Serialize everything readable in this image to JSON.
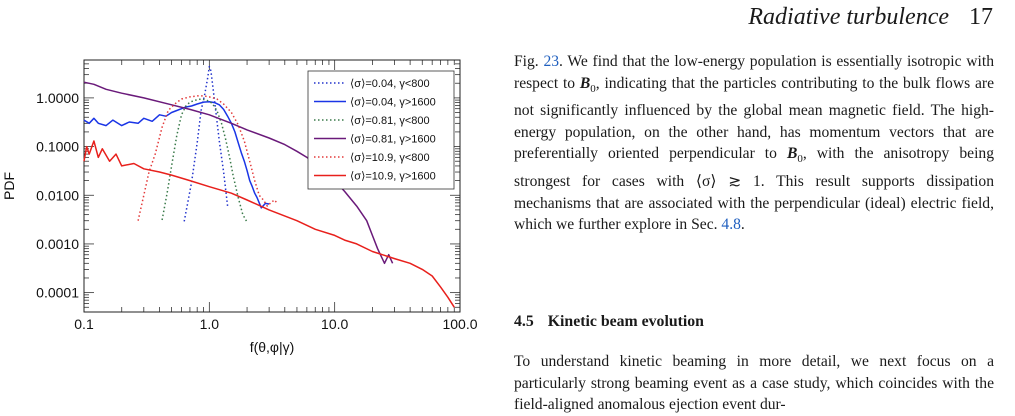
{
  "header": {
    "running_title": "Radiative turbulence",
    "page_number": "17"
  },
  "figure": {
    "chart_data": {
      "type": "line",
      "xlabel": "f(θ,φ|γ)",
      "ylabel": "PDF",
      "xscale": "log",
      "yscale": "log",
      "xlim": [
        0.1,
        100
      ],
      "ylim": [
        4e-05,
        6
      ],
      "x_ticks": [
        0.1,
        1,
        10,
        100
      ],
      "x_tick_labels": [
        "0.1",
        "1.0",
        "10.0",
        "100.0"
      ],
      "y_ticks": [
        0.0001,
        0.001,
        0.01,
        0.1,
        1
      ],
      "y_tick_labels": [
        "0.0001",
        "0.0010",
        "0.0100",
        "0.1000",
        "1.0000"
      ],
      "legend_position": "top-right",
      "series": [
        {
          "name": "⟨σ⟩=0.04, γ<800",
          "color": "#2233cc",
          "dash": "dot",
          "points": [
            [
              0.63,
              0.0029
            ],
            [
              0.72,
              0.018
            ],
            [
              0.8,
              0.12
            ],
            [
              0.86,
              0.55
            ],
            [
              0.92,
              1.2
            ],
            [
              0.97,
              2.6
            ],
            [
              1.0,
              4.4
            ],
            [
              1.03,
              3.6
            ],
            [
              1.07,
              1.6
            ],
            [
              1.12,
              0.6
            ],
            [
              1.2,
              0.13
            ],
            [
              1.3,
              0.03
            ],
            [
              1.4,
              0.006
            ]
          ]
        },
        {
          "name": "⟨σ⟩=0.04, γ>1600",
          "color": "#1a35e6",
          "dash": "solid",
          "points": [
            [
              0.1,
              0.35
            ],
            [
              0.11,
              0.3
            ],
            [
              0.12,
              0.38
            ],
            [
              0.13,
              0.3
            ],
            [
              0.15,
              0.27
            ],
            [
              0.17,
              0.35
            ],
            [
              0.2,
              0.27
            ],
            [
              0.23,
              0.32
            ],
            [
              0.27,
              0.3
            ],
            [
              0.3,
              0.38
            ],
            [
              0.35,
              0.33
            ],
            [
              0.4,
              0.45
            ],
            [
              0.45,
              0.42
            ],
            [
              0.5,
              0.5
            ],
            [
              0.55,
              0.55
            ],
            [
              0.6,
              0.6
            ],
            [
              0.65,
              0.65
            ],
            [
              0.72,
              0.68
            ],
            [
              0.8,
              0.75
            ],
            [
              0.9,
              0.82
            ],
            [
              1.0,
              0.83
            ],
            [
              1.1,
              0.8
            ],
            [
              1.2,
              0.72
            ],
            [
              1.3,
              0.58
            ],
            [
              1.4,
              0.42
            ],
            [
              1.5,
              0.3
            ],
            [
              1.6,
              0.2
            ],
            [
              1.7,
              0.12
            ],
            [
              1.8,
              0.075
            ],
            [
              1.9,
              0.05
            ],
            [
              2.0,
              0.032
            ],
            [
              2.1,
              0.02
            ],
            [
              2.2,
              0.015
            ],
            [
              2.3,
              0.011
            ],
            [
              2.4,
              0.009
            ],
            [
              2.5,
              0.007
            ],
            [
              2.6,
              0.0055
            ],
            [
              2.8,
              0.0068
            ],
            [
              3.0,
              0.0066
            ]
          ]
        },
        {
          "name": "⟨σ⟩=0.81, γ<800",
          "color": "#3a7a4a",
          "dash": "dot",
          "points": [
            [
              0.42,
              0.0031
            ],
            [
              0.46,
              0.011
            ],
            [
              0.5,
              0.04
            ],
            [
              0.55,
              0.17
            ],
            [
              0.6,
              0.45
            ],
            [
              0.65,
              0.68
            ],
            [
              0.7,
              0.82
            ],
            [
              0.78,
              0.9
            ],
            [
              0.86,
              0.95
            ],
            [
              0.95,
              0.9
            ],
            [
              1.05,
              0.78
            ],
            [
              1.15,
              0.55
            ],
            [
              1.25,
              0.3
            ],
            [
              1.35,
              0.14
            ],
            [
              1.45,
              0.06
            ],
            [
              1.55,
              0.025
            ],
            [
              1.7,
              0.009
            ],
            [
              1.85,
              0.004
            ],
            [
              2.0,
              0.0028
            ]
          ]
        },
        {
          "name": "⟨σ⟩=0.81, γ>1600",
          "color": "#6a1a7a",
          "dash": "solid",
          "points": [
            [
              0.1,
              2.1
            ],
            [
              0.12,
              1.9
            ],
            [
              0.15,
              1.5
            ],
            [
              0.2,
              1.25
            ],
            [
              0.3,
              1.0
            ],
            [
              0.5,
              0.72
            ],
            [
              0.7,
              0.58
            ],
            [
              1.0,
              0.45
            ],
            [
              1.5,
              0.3
            ],
            [
              2.0,
              0.22
            ],
            [
              3.0,
              0.15
            ],
            [
              4.0,
              0.11
            ],
            [
              5.0,
              0.08
            ],
            [
              6.0,
              0.06
            ],
            [
              7.0,
              0.045
            ],
            [
              8.0,
              0.032
            ],
            [
              10.0,
              0.02
            ],
            [
              12.0,
              0.012
            ],
            [
              15.0,
              0.006
            ],
            [
              18.0,
              0.003
            ],
            [
              20.0,
              0.0015
            ],
            [
              22.0,
              0.0008
            ],
            [
              25.0,
              0.0004
            ],
            [
              27.0,
              0.0006
            ],
            [
              29.0,
              0.0004
            ]
          ]
        },
        {
          "name": "⟨σ⟩=10.9, γ<800",
          "color": "#e33a3a",
          "dash": "dot",
          "points": [
            [
              0.27,
              0.003
            ],
            [
              0.3,
              0.01
            ],
            [
              0.33,
              0.03
            ],
            [
              0.37,
              0.07
            ],
            [
              0.42,
              0.25
            ],
            [
              0.47,
              0.55
            ],
            [
              0.53,
              0.75
            ],
            [
              0.6,
              0.95
            ],
            [
              0.7,
              1.05
            ],
            [
              0.8,
              1.1
            ],
            [
              0.9,
              1.1
            ],
            [
              1.0,
              1.05
            ],
            [
              1.15,
              0.95
            ],
            [
              1.3,
              0.75
            ],
            [
              1.5,
              0.5
            ],
            [
              1.7,
              0.28
            ],
            [
              1.9,
              0.13
            ],
            [
              2.1,
              0.05
            ],
            [
              2.3,
              0.02
            ],
            [
              2.5,
              0.01
            ],
            [
              2.7,
              0.008
            ],
            [
              2.9,
              0.006
            ],
            [
              3.1,
              0.007
            ],
            [
              3.3,
              0.008
            ],
            [
              3.5,
              0.0068
            ]
          ]
        },
        {
          "name": "⟨σ⟩=10.9, γ>1600",
          "color": "#e8201c",
          "dash": "solid",
          "points": [
            [
              0.1,
              0.05
            ],
            [
              0.105,
              0.1
            ],
            [
              0.11,
              0.07
            ],
            [
              0.12,
              0.13
            ],
            [
              0.13,
              0.06
            ],
            [
              0.14,
              0.09
            ],
            [
              0.16,
              0.05
            ],
            [
              0.18,
              0.07
            ],
            [
              0.2,
              0.04
            ],
            [
              0.25,
              0.045
            ],
            [
              0.3,
              0.035
            ],
            [
              0.4,
              0.03
            ],
            [
              0.5,
              0.026
            ],
            [
              0.7,
              0.02
            ],
            [
              1.0,
              0.015
            ],
            [
              1.5,
              0.011
            ],
            [
              2.0,
              0.008
            ],
            [
              3.0,
              0.005
            ],
            [
              5.0,
              0.003
            ],
            [
              7.0,
              0.002
            ],
            [
              10.0,
              0.0015
            ],
            [
              12.0,
              0.0012
            ],
            [
              15.0,
              0.001
            ],
            [
              20.0,
              0.0007
            ],
            [
              30.0,
              0.0005
            ],
            [
              40.0,
              0.0004
            ],
            [
              50.0,
              0.0003
            ],
            [
              60.0,
              0.00022
            ],
            [
              70.0,
              0.00013
            ],
            [
              80.0,
              8e-05
            ],
            [
              90.0,
              5e-05
            ]
          ]
        }
      ]
    }
  },
  "body": {
    "paragraph": [
      {
        "text": "Fig. "
      },
      {
        "text": "23",
        "ref": true
      },
      {
        "text": ". We find that the low-energy population is essentially isotropic with respect to "
      },
      {
        "text": "B",
        "bolditalic": true
      },
      {
        "text": "0",
        "sub": true
      },
      {
        "text": ", indicating that the particles contributing to the bulk flows are not significantly influenced by the global mean magnetic field. The high-energy population, on the other hand, has momentum vectors that are preferentially oriented perpendicular to "
      },
      {
        "text": "B",
        "bolditalic": true
      },
      {
        "text": "0",
        "sub": true
      },
      {
        "text": ", with the anisotropy being strongest for cases with ⟨σ⟩ ≳ 1. This result supports dissipation mechanisms that are associated with the perpendicular (ideal) electric field, which we further explore in Sec. "
      },
      {
        "text": "4.8",
        "ref": true
      },
      {
        "text": "."
      }
    ],
    "section_number": "4.5",
    "section_title": "Kinetic beam evolution",
    "paragraph_2": "To understand kinetic beaming in more detail, we next focus on a particularly strong beaming event as a case study, which coincides with the field-aligned anomalous ejection event dur-"
  }
}
